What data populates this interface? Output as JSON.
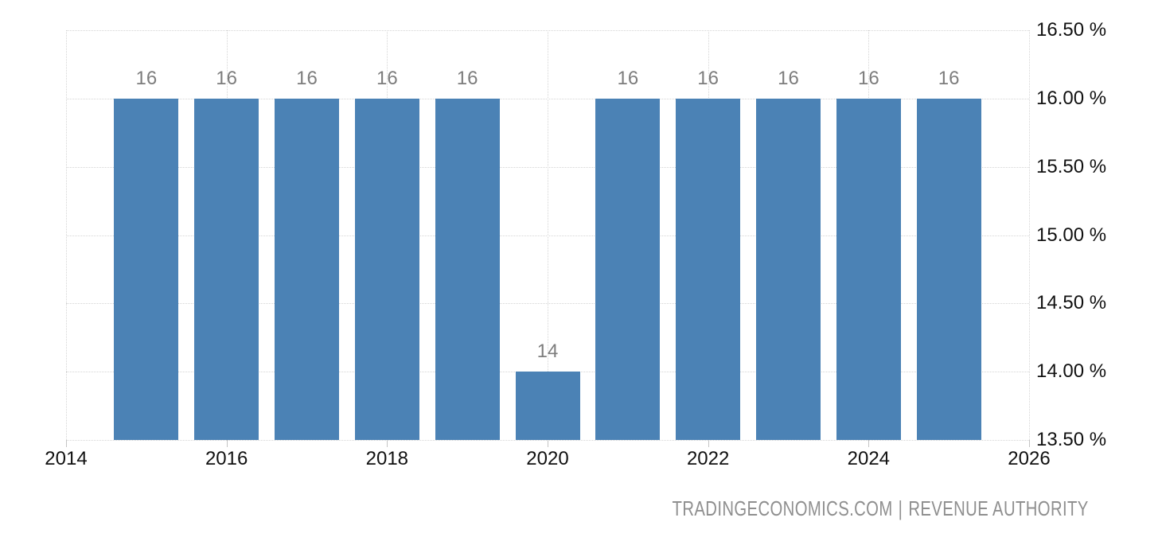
{
  "chart_data": {
    "type": "bar",
    "x": [
      2015,
      2016,
      2017,
      2018,
      2019,
      2020,
      2021,
      2022,
      2023,
      2024,
      2025
    ],
    "values": [
      16,
      16,
      16,
      16,
      16,
      14,
      16,
      16,
      16,
      16,
      16
    ],
    "bar_value_labels": [
      "16",
      "16",
      "16",
      "16",
      "16",
      "14",
      "16",
      "16",
      "16",
      "16",
      "16"
    ],
    "xlim": [
      2014,
      2026
    ],
    "ylim": [
      13.5,
      16.5
    ],
    "x_tick_values": [
      2014,
      2016,
      2018,
      2020,
      2022,
      2024,
      2026
    ],
    "x_tick_labels": [
      "2014",
      "2016",
      "2018",
      "2020",
      "2022",
      "2024",
      "2026"
    ],
    "y_tick_values": [
      16.5,
      16.0,
      15.5,
      15.0,
      14.5,
      14.0,
      13.5
    ],
    "y_tick_labels": [
      "16.50 %",
      "16.00 %",
      "15.50 %",
      "15.00 %",
      "14.50 %",
      "14.00 %",
      "13.50 %"
    ],
    "grid": true,
    "legend": "none",
    "colors": {
      "bar": "#4b82b5",
      "bar_value_label": "#7d7d7d",
      "axis_text": "#111111",
      "gridline": "#d5d5d5",
      "tick": "#c4c4c4",
      "footer_text": "#8f8f8f"
    }
  },
  "footer": {
    "source_site": "TRADINGECONOMICS.COM",
    "separator": "|",
    "source_name": "REVENUE AUTHORITY"
  }
}
